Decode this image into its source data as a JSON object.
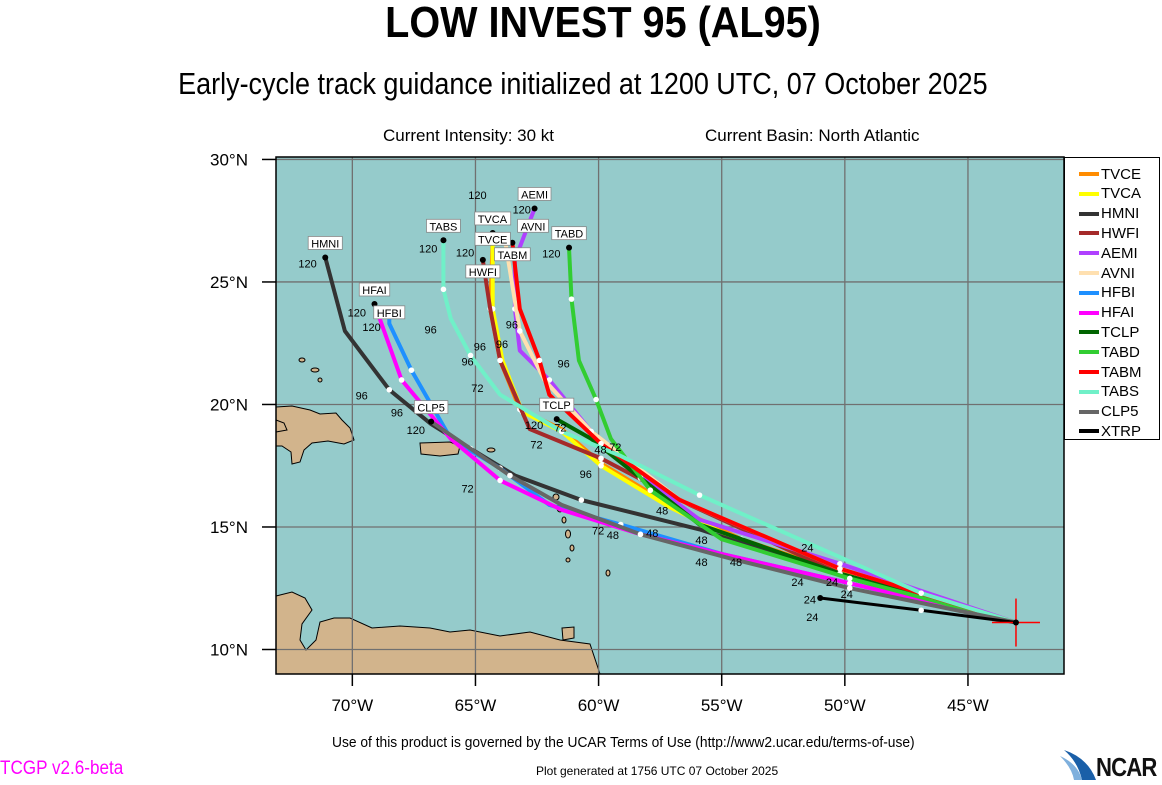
{
  "header": {
    "title": "LOW INVEST 95 (AL95)",
    "subtitle": "Early-cycle track guidance initialized at 1200 UTC, 07 October 2025",
    "intensity": "Current Intensity: 30 kt",
    "basin": "Current Basin: North Atlantic"
  },
  "footer": {
    "terms": "Use of this product is governed by the UCAR Terms of Use (http://www2.ucar.edu/terms-of-use)",
    "generated": "Plot generated at 1756 UTC   07 October 2025",
    "version": "TCGP v2.6-beta",
    "logo": "NCAR"
  },
  "colors": {
    "ocean": "#95cbcb",
    "land": "#d2b48c",
    "grid": "#707070"
  },
  "chart_data": {
    "type": "line",
    "title": "LOW INVEST 95 (AL95)",
    "xlim": [
      -73.1,
      -41.1
    ],
    "ylim": [
      9.0,
      30.1
    ],
    "x_ticks": [
      "70°W",
      "65°W",
      "60°W",
      "55°W",
      "50°W",
      "45°W"
    ],
    "x_tick_values": [
      -70,
      -65,
      -60,
      -55,
      -50,
      -45
    ],
    "y_ticks": [
      "10°N",
      "15°N",
      "20°N",
      "25°N",
      "30°N"
    ],
    "y_tick_values": [
      10,
      15,
      20,
      25,
      30
    ],
    "grid": true,
    "legend_position": "right",
    "initial_position": {
      "lon": -43.05,
      "lat": 11.1
    },
    "series": [
      {
        "name": "TVCE",
        "color": "#ff8c00",
        "points": [
          [
            -43.05,
            11.1
          ],
          [
            -46.9,
            12.1
          ],
          [
            -50.6,
            13.3
          ],
          [
            -54.2,
            14.5
          ],
          [
            -57.1,
            15.9
          ],
          [
            -59.9,
            17.6
          ],
          [
            -61.5,
            19.0
          ],
          [
            -63.2,
            19.8
          ],
          [
            -64.0,
            21.8
          ],
          [
            -64.4,
            23.9
          ],
          [
            -64.3,
            26.7
          ]
        ],
        "end_label": "TVCE"
      },
      {
        "name": "TVCA",
        "color": "#ffff00",
        "points": [
          [
            -43.05,
            11.1
          ],
          [
            -46.9,
            12.0
          ],
          [
            -50.6,
            13.2
          ],
          [
            -54.2,
            14.4
          ],
          [
            -57.1,
            15.8
          ],
          [
            -59.9,
            17.5
          ],
          [
            -61.5,
            18.9
          ],
          [
            -63.1,
            19.7
          ],
          [
            -63.9,
            21.8
          ],
          [
            -64.3,
            23.9
          ],
          [
            -64.3,
            27.0
          ]
        ],
        "end_label": "TVCA"
      },
      {
        "name": "HMNI",
        "color": "#333333",
        "points": [
          [
            -43.05,
            11.1
          ],
          [
            -49.8,
            12.9
          ],
          [
            -55.9,
            14.9
          ],
          [
            -60.7,
            16.1
          ],
          [
            -63.4,
            17.1
          ],
          [
            -65.2,
            18.2
          ],
          [
            -66.8,
            19.2
          ],
          [
            -68.5,
            20.6
          ],
          [
            -70.3,
            23.0
          ],
          [
            -71.1,
            26.0
          ]
        ],
        "end_label": "HMNI"
      },
      {
        "name": "HWFI",
        "color": "#a52a2a",
        "points": [
          [
            -43.05,
            11.1
          ],
          [
            -50.2,
            13.1
          ],
          [
            -56.3,
            15.9
          ],
          [
            -59.9,
            17.8
          ],
          [
            -62.8,
            19.0
          ],
          [
            -64.0,
            21.8
          ],
          [
            -64.4,
            23.9
          ],
          [
            -64.7,
            25.9
          ]
        ],
        "end_label": "HWFI"
      },
      {
        "name": "AEMI",
        "color": "#b040ff",
        "points": [
          [
            -43.05,
            11.1
          ],
          [
            -50.2,
            13.5
          ],
          [
            -55.9,
            15.3
          ],
          [
            -58.3,
            17.1
          ],
          [
            -60.3,
            18.9
          ],
          [
            -62.0,
            21.0
          ],
          [
            -63.2,
            22.2
          ],
          [
            -63.4,
            23.9
          ],
          [
            -63.4,
            25.9
          ],
          [
            -62.6,
            28.0
          ]
        ],
        "end_label": "AEMI"
      },
      {
        "name": "AVNI",
        "color": "#ffe0b0",
        "points": [
          [
            -43.05,
            11.1
          ],
          [
            -50.2,
            13.3
          ],
          [
            -56.7,
            16.1
          ],
          [
            -60.3,
            18.9
          ],
          [
            -62.2,
            21.0
          ],
          [
            -63.2,
            23.0
          ],
          [
            -63.8,
            26.7
          ]
        ],
        "end_label": "AVNI"
      },
      {
        "name": "HFBI",
        "color": "#1e90ff",
        "points": [
          [
            -43.05,
            11.1
          ],
          [
            -49.8,
            12.7
          ],
          [
            -55.0,
            13.9
          ],
          [
            -59.1,
            15.1
          ],
          [
            -62.0,
            15.9
          ],
          [
            -64.0,
            17.4
          ],
          [
            -66.0,
            18.6
          ],
          [
            -67.6,
            21.4
          ],
          [
            -68.5,
            23.3
          ],
          [
            -68.5,
            23.7
          ]
        ],
        "end_label": "HFBI"
      },
      {
        "name": "HFAI",
        "color": "#ff00ff",
        "points": [
          [
            -43.05,
            11.1
          ],
          [
            -49.8,
            12.7
          ],
          [
            -55.0,
            13.9
          ],
          [
            -58.3,
            14.7
          ],
          [
            -61.5,
            15.7
          ],
          [
            -64.0,
            16.9
          ],
          [
            -66.0,
            18.6
          ],
          [
            -68.0,
            21.0
          ],
          [
            -69.1,
            24.1
          ]
        ],
        "end_label": "HFAI"
      },
      {
        "name": "TCLP",
        "color": "#006400",
        "points": [
          [
            -43.05,
            11.1
          ],
          [
            -50.2,
            13.1
          ],
          [
            -55.9,
            15.1
          ],
          [
            -58.3,
            17.0
          ],
          [
            -60.3,
            18.6
          ],
          [
            -61.7,
            19.4
          ]
        ],
        "end_label": "TCLP"
      },
      {
        "name": "TABD",
        "color": "#32cd32",
        "points": [
          [
            -43.05,
            11.1
          ],
          [
            -49.8,
            12.9
          ],
          [
            -55.0,
            14.5
          ],
          [
            -57.9,
            16.5
          ],
          [
            -59.5,
            18.6
          ],
          [
            -60.1,
            20.2
          ],
          [
            -60.8,
            21.8
          ],
          [
            -61.1,
            24.3
          ],
          [
            -61.2,
            26.4
          ]
        ],
        "end_label": "TABD"
      },
      {
        "name": "TABM",
        "color": "#ff0000",
        "points": [
          [
            -43.05,
            11.1
          ],
          [
            -50.2,
            13.3
          ],
          [
            -56.7,
            16.1
          ],
          [
            -59.9,
            18.4
          ],
          [
            -62.0,
            20.4
          ],
          [
            -62.4,
            21.8
          ],
          [
            -63.2,
            23.9
          ],
          [
            -63.5,
            26.6
          ]
        ],
        "end_label": "TABM"
      },
      {
        "name": "TABS",
        "color": "#70f0c8",
        "points": [
          [
            -43.05,
            11.1
          ],
          [
            -46.9,
            12.3
          ],
          [
            -51.4,
            14.3
          ],
          [
            -55.9,
            16.3
          ],
          [
            -59.1,
            17.9
          ],
          [
            -61.5,
            18.9
          ],
          [
            -64.0,
            20.4
          ],
          [
            -65.2,
            22.0
          ],
          [
            -66.0,
            23.5
          ],
          [
            -66.3,
            24.7
          ],
          [
            -66.3,
            26.7
          ]
        ],
        "end_label": "TABS"
      },
      {
        "name": "CLP5",
        "color": "#666666",
        "points": [
          [
            -43.05,
            11.1
          ],
          [
            -49.8,
            12.5
          ],
          [
            -54.6,
            13.7
          ],
          [
            -58.3,
            14.7
          ],
          [
            -61.5,
            15.9
          ],
          [
            -63.6,
            17.1
          ],
          [
            -65.2,
            18.2
          ],
          [
            -66.8,
            19.3
          ]
        ],
        "end_label": "CLP5"
      },
      {
        "name": "XTRP",
        "color": "#000000",
        "points": [
          [
            -43.05,
            11.1
          ],
          [
            -46.9,
            11.6
          ],
          [
            -51.0,
            12.1
          ]
        ],
        "end_label": ""
      }
    ],
    "hour_labels": [
      {
        "text": "120",
        "lon": -71.8,
        "lat": 25.6
      },
      {
        "text": "120",
        "lon": -69.8,
        "lat": 23.6
      },
      {
        "text": "120",
        "lon": -69.2,
        "lat": 23.0
      },
      {
        "text": "120",
        "lon": -66.9,
        "lat": 26.2
      },
      {
        "text": "120",
        "lon": -65.4,
        "lat": 25.5
      },
      {
        "text": "120",
        "lon": -64.9,
        "lat": 26.8
      },
      {
        "text": "120",
        "lon": -61.9,
        "lat": 26.0
      },
      {
        "text": "120",
        "lon": -63.1,
        "lat": 27.8
      },
      {
        "text": "120",
        "lon": -67.4,
        "lat": 18.8
      },
      {
        "text": "120",
        "lon": -62.6,
        "lat": 19.0
      },
      {
        "text": "96",
        "lon": -69.6,
        "lat": 20.2
      },
      {
        "text": "96",
        "lon": -67.6,
        "lat": 19.5
      },
      {
        "text": "96",
        "lon": -66.8,
        "lat": 22.9
      },
      {
        "text": "96",
        "lon": -65.3,
        "lat": 21.6
      },
      {
        "text": "96",
        "lon": -64.8,
        "lat": 22.2
      },
      {
        "text": "96",
        "lon": -63.9,
        "lat": 22.3
      },
      {
        "text": "96",
        "lon": -63.5,
        "lat": 23.1
      },
      {
        "text": "96",
        "lon": -61.4,
        "lat": 21.5
      },
      {
        "text": "96",
        "lon": -60.5,
        "lat": 17.0
      },
      {
        "text": "72",
        "lon": -64.9,
        "lat": 20.5
      },
      {
        "text": "72",
        "lon": -62.5,
        "lat": 18.2
      },
      {
        "text": "72",
        "lon": -62.1,
        "lat": 18.9
      },
      {
        "text": "72",
        "lon": -65.3,
        "lat": 16.4
      },
      {
        "text": "72",
        "lon": -60.0,
        "lat": 14.7
      },
      {
        "text": "72",
        "lon": -59.3,
        "lat": 18.1
      },
      {
        "text": "48",
        "lon": -59.9,
        "lat": 18.0
      },
      {
        "text": "48",
        "lon": -57.4,
        "lat": 15.5
      },
      {
        "text": "48",
        "lon": -59.4,
        "lat": 14.5
      },
      {
        "text": "48",
        "lon": -57.8,
        "lat": 14.6
      },
      {
        "text": "48",
        "lon": -55.8,
        "lat": 14.3
      },
      {
        "text": "48",
        "lon": -55.8,
        "lat": 13.4
      },
      {
        "text": "48",
        "lon": -54.4,
        "lat": 13.4
      },
      {
        "text": "24",
        "lon": -51.5,
        "lat": 14.0
      },
      {
        "text": "24",
        "lon": -51.9,
        "lat": 12.6
      },
      {
        "text": "24",
        "lon": -51.4,
        "lat": 12.4
      },
      {
        "text": "24",
        "lon": -50.5,
        "lat": 12.6
      },
      {
        "text": "24",
        "lon": -49.9,
        "lat": 12.1
      },
      {
        "text": "24",
        "lon": -51.3,
        "lat": 11.7
      }
    ]
  }
}
